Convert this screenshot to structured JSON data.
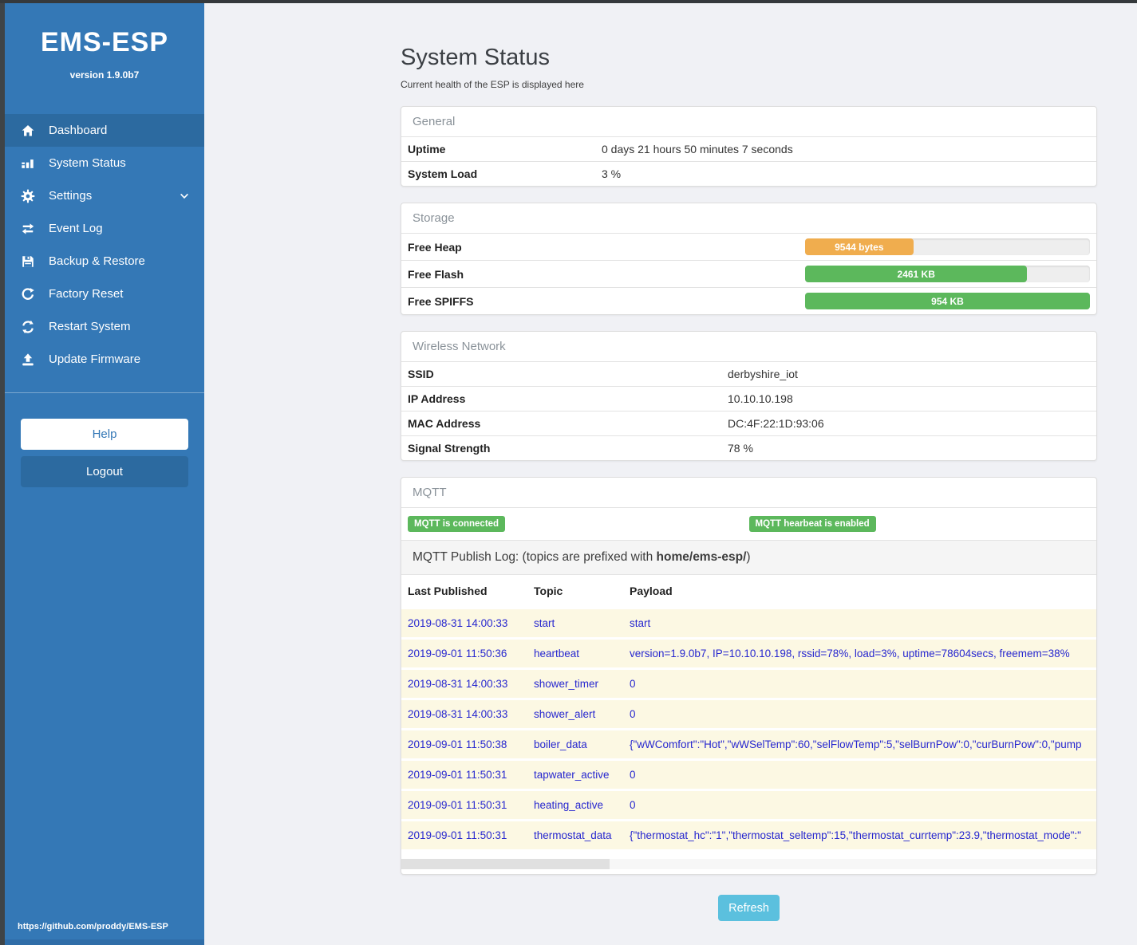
{
  "sidebar": {
    "title": "EMS-ESP",
    "version": "version 1.9.0b7",
    "items": [
      {
        "label": "Dashboard"
      },
      {
        "label": "System Status"
      },
      {
        "label": "Settings"
      },
      {
        "label": "Event Log"
      },
      {
        "label": "Backup & Restore"
      },
      {
        "label": "Factory Reset"
      },
      {
        "label": "Restart System"
      },
      {
        "label": "Update Firmware"
      }
    ],
    "help_label": "Help",
    "logout_label": "Logout",
    "footer_link": "https://github.com/proddy/EMS-ESP"
  },
  "header": {
    "title": "System Status",
    "subtitle": "Current health of the ESP is displayed here"
  },
  "general": {
    "title": "General",
    "rows": [
      {
        "label": "Uptime",
        "value": "0 days 21 hours 50 minutes 7 seconds"
      },
      {
        "label": "System Load",
        "value": "3 %"
      }
    ]
  },
  "storage": {
    "title": "Storage",
    "rows": [
      {
        "label": "Free Heap",
        "bar_label": "9544 bytes",
        "percent": 38,
        "color": "#f0ad4e"
      },
      {
        "label": "Free Flash",
        "bar_label": "2461 KB",
        "percent": 78,
        "color": "#5cb85c"
      },
      {
        "label": "Free SPIFFS",
        "bar_label": "954 KB",
        "percent": 100,
        "color": "#5cb85c"
      }
    ]
  },
  "wireless": {
    "title": "Wireless Network",
    "rows": [
      {
        "label": "SSID",
        "value": "derbyshire_iot"
      },
      {
        "label": "IP Address",
        "value": "10.10.10.198"
      },
      {
        "label": "MAC Address",
        "value": "DC:4F:22:1D:93:06"
      },
      {
        "label": "Signal Strength",
        "value": "78 %"
      }
    ]
  },
  "mqtt": {
    "title": "MQTT",
    "badges": [
      {
        "label": "MQTT is connected"
      },
      {
        "label": "MQTT hearbeat is enabled"
      }
    ],
    "badge_color": "#5cb85c",
    "publish_log_text": "MQTT Publish Log: (topics are prefixed with ",
    "publish_log_bold": "home/ems-esp/",
    "publish_log_suffix": ")",
    "columns": [
      "Last Published",
      "Topic",
      "Payload"
    ],
    "log": [
      {
        "time": "2019-08-31 14:00:33",
        "topic": "start",
        "payload": "start"
      },
      {
        "time": "2019-09-01 11:50:36",
        "topic": "heartbeat",
        "payload": "version=1.9.0b7, IP=10.10.10.198, rssid=78%, load=3%, uptime=78604secs, freemem=38%"
      },
      {
        "time": "2019-08-31 14:00:33",
        "topic": "shower_timer",
        "payload": "0"
      },
      {
        "time": "2019-08-31 14:00:33",
        "topic": "shower_alert",
        "payload": "0"
      },
      {
        "time": "2019-09-01 11:50:38",
        "topic": "boiler_data",
        "payload": "{\"wWComfort\":\"Hot\",\"wWSelTemp\":60,\"selFlowTemp\":5,\"selBurnPow\":0,\"curBurnPow\":0,\"pump"
      },
      {
        "time": "2019-09-01 11:50:31",
        "topic": "tapwater_active",
        "payload": "0"
      },
      {
        "time": "2019-09-01 11:50:31",
        "topic": "heating_active",
        "payload": "0"
      },
      {
        "time": "2019-09-01 11:50:31",
        "topic": "thermostat_data",
        "payload": "{\"thermostat_hc\":\"1\",\"thermostat_seltemp\":15,\"thermostat_currtemp\":23.9,\"thermostat_mode\":\""
      }
    ]
  },
  "refresh_label": "Refresh",
  "colors": {
    "sidebar": "#3478b6",
    "sidebar_active": "#2c6aa0",
    "accent_info": "#5bc0de",
    "success": "#5cb85c",
    "warning": "#f0ad4e",
    "log_row_bg": "#fcf8e3",
    "log_text": "#2727cf"
  }
}
